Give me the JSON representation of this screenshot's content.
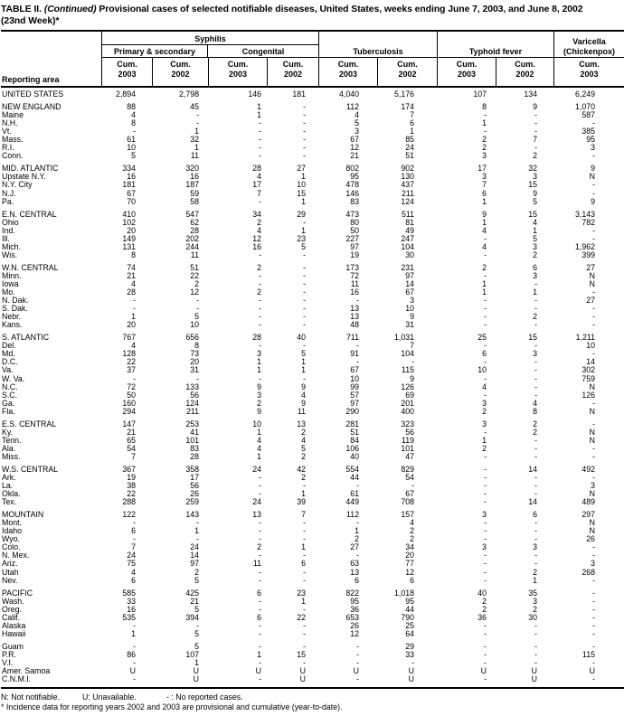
{
  "title": {
    "table_label": "TABLE II.",
    "continued": "(Continued)",
    "line1_rest": "Provisional cases of selected notifiable diseases, United States, weeks ending June 7, 2003, and June 8, 2002",
    "line2": "(23nd Week)*"
  },
  "header": {
    "reporting_area": "Reporting area",
    "syphilis": "Syphilis",
    "primary_secondary": "Primary & secondary",
    "congenital": "Congenital",
    "tuberculosis": "Tuberculosis",
    "typhoid_fever": "Typhoid fever",
    "varicella_line1": "Varicella",
    "varicella_line2": "(Chickenpox)",
    "columns": [
      {
        "label": "Cum.",
        "year": "2003"
      },
      {
        "label": "Cum.",
        "year": "2002"
      },
      {
        "label": "Cum.",
        "year": "2003"
      },
      {
        "label": "Cum.",
        "year": "2002"
      },
      {
        "label": "Cum.",
        "year": "2003"
      },
      {
        "label": "Cum.",
        "year": "2002"
      },
      {
        "label": "Cum.",
        "year": "2003"
      },
      {
        "label": "Cum.",
        "year": "2002"
      },
      {
        "label": "Cum.",
        "year": "2003"
      }
    ]
  },
  "table": {
    "rows": [
      {
        "area": "UNITED STATES",
        "section": true,
        "gap": false,
        "values": [
          "2,894",
          "2,798",
          "146",
          "181",
          "4,040",
          "5,176",
          "107",
          "134",
          "6,249"
        ]
      },
      {
        "area": "NEW ENGLAND",
        "section": true,
        "gap": true,
        "values": [
          "88",
          "45",
          "1",
          "-",
          "112",
          "174",
          "8",
          "9",
          "1,070"
        ]
      },
      {
        "area": "Maine",
        "section": false,
        "gap": false,
        "values": [
          "4",
          "-",
          "1",
          "-",
          "4",
          "7",
          "-",
          "-",
          "587"
        ]
      },
      {
        "area": "N.H.",
        "section": false,
        "gap": false,
        "values": [
          "8",
          "-",
          "-",
          "-",
          "5",
          "6",
          "1",
          "-",
          "-"
        ]
      },
      {
        "area": "Vt.",
        "section": false,
        "gap": false,
        "values": [
          "-",
          "1",
          "-",
          "-",
          "3",
          "1",
          "-",
          "-",
          "385"
        ]
      },
      {
        "area": "Mass.",
        "section": false,
        "gap": false,
        "values": [
          "61",
          "32",
          "-",
          "-",
          "67",
          "85",
          "2",
          "7",
          "95"
        ]
      },
      {
        "area": "R.I.",
        "section": false,
        "gap": false,
        "values": [
          "10",
          "1",
          "-",
          "-",
          "12",
          "24",
          "2",
          "-",
          "3"
        ]
      },
      {
        "area": "Conn.",
        "section": false,
        "gap": false,
        "values": [
          "5",
          "11",
          "-",
          "-",
          "21",
          "51",
          "3",
          "2",
          "-"
        ]
      },
      {
        "area": "MID. ATLANTIC",
        "section": true,
        "gap": true,
        "values": [
          "334",
          "320",
          "28",
          "27",
          "802",
          "902",
          "17",
          "32",
          "9"
        ]
      },
      {
        "area": "Upstate N.Y.",
        "section": false,
        "gap": false,
        "values": [
          "16",
          "16",
          "4",
          "1",
          "95",
          "130",
          "3",
          "3",
          "N"
        ]
      },
      {
        "area": "N.Y. City",
        "section": false,
        "gap": false,
        "values": [
          "181",
          "187",
          "17",
          "10",
          "478",
          "437",
          "7",
          "15",
          "-"
        ]
      },
      {
        "area": "N.J.",
        "section": false,
        "gap": false,
        "values": [
          "67",
          "59",
          "7",
          "15",
          "146",
          "211",
          "6",
          "9",
          "-"
        ]
      },
      {
        "area": "Pa.",
        "section": false,
        "gap": false,
        "values": [
          "70",
          "58",
          "-",
          "1",
          "83",
          "124",
          "1",
          "5",
          "9"
        ]
      },
      {
        "area": "E.N. CENTRAL",
        "section": true,
        "gap": true,
        "values": [
          "410",
          "547",
          "34",
          "29",
          "473",
          "511",
          "9",
          "15",
          "3,143"
        ]
      },
      {
        "area": "Ohio",
        "section": false,
        "gap": false,
        "values": [
          "102",
          "62",
          "2",
          "-",
          "80",
          "81",
          "1",
          "4",
          "782"
        ]
      },
      {
        "area": "Ind.",
        "section": false,
        "gap": false,
        "values": [
          "20",
          "28",
          "4",
          "1",
          "50",
          "49",
          "4",
          "1",
          "-"
        ]
      },
      {
        "area": "Ill.",
        "section": false,
        "gap": false,
        "values": [
          "149",
          "202",
          "12",
          "23",
          "227",
          "247",
          "-",
          "5",
          "-"
        ]
      },
      {
        "area": "Mich.",
        "section": false,
        "gap": false,
        "values": [
          "131",
          "244",
          "16",
          "5",
          "97",
          "104",
          "4",
          "3",
          "1,962"
        ]
      },
      {
        "area": "Wis.",
        "section": false,
        "gap": false,
        "values": [
          "8",
          "11",
          "-",
          "-",
          "19",
          "30",
          "-",
          "2",
          "399"
        ]
      },
      {
        "area": "W.N. CENTRAL",
        "section": true,
        "gap": true,
        "values": [
          "74",
          "51",
          "2",
          "-",
          "173",
          "231",
          "2",
          "6",
          "27"
        ]
      },
      {
        "area": "Minn.",
        "section": false,
        "gap": false,
        "values": [
          "21",
          "22",
          "-",
          "-",
          "72",
          "97",
          "-",
          "3",
          "N"
        ]
      },
      {
        "area": "Iowa",
        "section": false,
        "gap": false,
        "values": [
          "4",
          "2",
          "-",
          "-",
          "11",
          "14",
          "1",
          "-",
          "N"
        ]
      },
      {
        "area": "Mo.",
        "section": false,
        "gap": false,
        "values": [
          "28",
          "12",
          "2",
          "-",
          "16",
          "67",
          "1",
          "1",
          "-"
        ]
      },
      {
        "area": "N. Dak.",
        "section": false,
        "gap": false,
        "values": [
          "-",
          "-",
          "-",
          "-",
          "-",
          "3",
          "-",
          "-",
          "27"
        ]
      },
      {
        "area": "S. Dak.",
        "section": false,
        "gap": false,
        "values": [
          "-",
          "-",
          "-",
          "-",
          "13",
          "10",
          "-",
          "-",
          "-"
        ]
      },
      {
        "area": "Nebr.",
        "section": false,
        "gap": false,
        "values": [
          "1",
          "5",
          "-",
          "-",
          "13",
          "9",
          "-",
          "2",
          "-"
        ]
      },
      {
        "area": "Kans.",
        "section": false,
        "gap": false,
        "values": [
          "20",
          "10",
          "-",
          "-",
          "48",
          "31",
          "-",
          "-",
          "-"
        ]
      },
      {
        "area": "S. ATLANTIC",
        "section": true,
        "gap": true,
        "values": [
          "767",
          "656",
          "28",
          "40",
          "711",
          "1,031",
          "25",
          "15",
          "1,211"
        ]
      },
      {
        "area": "Del.",
        "section": false,
        "gap": false,
        "values": [
          "4",
          "8",
          "-",
          "-",
          "-",
          "7",
          "-",
          "-",
          "10"
        ]
      },
      {
        "area": "Md.",
        "section": false,
        "gap": false,
        "values": [
          "128",
          "73",
          "3",
          "5",
          "91",
          "104",
          "6",
          "3",
          "-"
        ]
      },
      {
        "area": "D.C.",
        "section": false,
        "gap": false,
        "values": [
          "22",
          "20",
          "1",
          "1",
          "-",
          "-",
          "-",
          "-",
          "14"
        ]
      },
      {
        "area": "Va.",
        "section": false,
        "gap": false,
        "values": [
          "37",
          "31",
          "1",
          "1",
          "67",
          "115",
          "10",
          "-",
          "302"
        ]
      },
      {
        "area": "W. Va.",
        "section": false,
        "gap": false,
        "values": [
          "-",
          "-",
          "-",
          "-",
          "10",
          "9",
          "-",
          "-",
          "759"
        ]
      },
      {
        "area": "N.C.",
        "section": false,
        "gap": false,
        "values": [
          "72",
          "133",
          "9",
          "9",
          "99",
          "126",
          "4",
          "-",
          "N"
        ]
      },
      {
        "area": "S.C.",
        "section": false,
        "gap": false,
        "values": [
          "50",
          "56",
          "3",
          "4",
          "57",
          "69",
          "-",
          "-",
          "126"
        ]
      },
      {
        "area": "Ga.",
        "section": false,
        "gap": false,
        "values": [
          "160",
          "124",
          "2",
          "9",
          "97",
          "201",
          "3",
          "4",
          "-"
        ]
      },
      {
        "area": "Fla.",
        "section": false,
        "gap": false,
        "values": [
          "294",
          "211",
          "9",
          "11",
          "290",
          "400",
          "2",
          "8",
          "N"
        ]
      },
      {
        "area": "E.S. CENTRAL",
        "section": true,
        "gap": true,
        "values": [
          "147",
          "253",
          "10",
          "13",
          "281",
          "323",
          "3",
          "2",
          "-"
        ]
      },
      {
        "area": "Ky.",
        "section": false,
        "gap": false,
        "values": [
          "21",
          "41",
          "1",
          "2",
          "51",
          "56",
          "-",
          "2",
          "N"
        ]
      },
      {
        "area": "Tenn.",
        "section": false,
        "gap": false,
        "values": [
          "65",
          "101",
          "4",
          "4",
          "84",
          "119",
          "1",
          "-",
          "N"
        ]
      },
      {
        "area": "Ala.",
        "section": false,
        "gap": false,
        "values": [
          "54",
          "83",
          "4",
          "5",
          "106",
          "101",
          "2",
          "-",
          "-"
        ]
      },
      {
        "area": "Miss.",
        "section": false,
        "gap": false,
        "values": [
          "7",
          "28",
          "1",
          "2",
          "40",
          "47",
          "-",
          "-",
          "-"
        ]
      },
      {
        "area": "W.S. CENTRAL",
        "section": true,
        "gap": true,
        "values": [
          "367",
          "358",
          "24",
          "42",
          "554",
          "829",
          "-",
          "14",
          "492"
        ]
      },
      {
        "area": "Ark.",
        "section": false,
        "gap": false,
        "values": [
          "19",
          "17",
          "-",
          "2",
          "44",
          "54",
          "-",
          "-",
          "-"
        ]
      },
      {
        "area": "La.",
        "section": false,
        "gap": false,
        "values": [
          "38",
          "56",
          "-",
          "-",
          "-",
          "-",
          "-",
          "-",
          "3"
        ]
      },
      {
        "area": "Okla.",
        "section": false,
        "gap": false,
        "values": [
          "22",
          "26",
          "-",
          "1",
          "61",
          "67",
          "-",
          "-",
          "N"
        ]
      },
      {
        "area": "Tex.",
        "section": false,
        "gap": false,
        "values": [
          "288",
          "259",
          "24",
          "39",
          "449",
          "708",
          "-",
          "14",
          "489"
        ]
      },
      {
        "area": "MOUNTAIN",
        "section": true,
        "gap": true,
        "values": [
          "122",
          "143",
          "13",
          "7",
          "112",
          "157",
          "3",
          "6",
          "297"
        ]
      },
      {
        "area": "Mont.",
        "section": false,
        "gap": false,
        "values": [
          "-",
          "-",
          "-",
          "-",
          "-",
          "4",
          "-",
          "-",
          "N"
        ]
      },
      {
        "area": "Idaho",
        "section": false,
        "gap": false,
        "values": [
          "6",
          "1",
          "-",
          "-",
          "1",
          "2",
          "-",
          "-",
          "N"
        ]
      },
      {
        "area": "Wyo.",
        "section": false,
        "gap": false,
        "values": [
          "-",
          "-",
          "-",
          "-",
          "2",
          "2",
          "-",
          "-",
          "26"
        ]
      },
      {
        "area": "Colo.",
        "section": false,
        "gap": false,
        "values": [
          "7",
          "24",
          "2",
          "1",
          "27",
          "34",
          "3",
          "3",
          "-"
        ]
      },
      {
        "area": "N. Mex.",
        "section": false,
        "gap": false,
        "values": [
          "24",
          "14",
          "-",
          "-",
          "-",
          "20",
          "-",
          "-",
          "-"
        ]
      },
      {
        "area": "Ariz.",
        "section": false,
        "gap": false,
        "values": [
          "75",
          "97",
          "11",
          "6",
          "63",
          "77",
          "-",
          "-",
          "3"
        ]
      },
      {
        "area": "Utah",
        "section": false,
        "gap": false,
        "values": [
          "4",
          "2",
          "-",
          "-",
          "13",
          "12",
          "-",
          "2",
          "268"
        ]
      },
      {
        "area": "Nev.",
        "section": false,
        "gap": false,
        "values": [
          "6",
          "5",
          "-",
          "-",
          "6",
          "6",
          "-",
          "1",
          "-"
        ]
      },
      {
        "area": "PACIFIC",
        "section": true,
        "gap": true,
        "values": [
          "585",
          "425",
          "6",
          "23",
          "822",
          "1,018",
          "40",
          "35",
          "-"
        ]
      },
      {
        "area": "Wash.",
        "section": false,
        "gap": false,
        "values": [
          "33",
          "21",
          "-",
          "1",
          "95",
          "95",
          "2",
          "3",
          "-"
        ]
      },
      {
        "area": "Oreg.",
        "section": false,
        "gap": false,
        "values": [
          "16",
          "5",
          "-",
          "-",
          "36",
          "44",
          "2",
          "2",
          "-"
        ]
      },
      {
        "area": "Calif.",
        "section": false,
        "gap": false,
        "values": [
          "535",
          "394",
          "6",
          "22",
          "653",
          "790",
          "36",
          "30",
          "-"
        ]
      },
      {
        "area": "Alaska",
        "section": false,
        "gap": false,
        "values": [
          "-",
          "-",
          "-",
          "-",
          "26",
          "25",
          "-",
          "-",
          "-"
        ]
      },
      {
        "area": "Hawaii",
        "section": false,
        "gap": false,
        "values": [
          "1",
          "5",
          "-",
          "-",
          "12",
          "64",
          "-",
          "-",
          "-"
        ]
      },
      {
        "area": "Guam",
        "section": false,
        "gap": true,
        "values": [
          "-",
          "5",
          "-",
          "-",
          "-",
          "29",
          "-",
          "-",
          "-"
        ]
      },
      {
        "area": "P.R.",
        "section": false,
        "gap": false,
        "values": [
          "86",
          "107",
          "1",
          "15",
          "-",
          "33",
          "-",
          "-",
          "115"
        ]
      },
      {
        "area": "V.I.",
        "section": false,
        "gap": false,
        "values": [
          "-",
          "1",
          "-",
          "-",
          "-",
          "-",
          "-",
          "-",
          "-"
        ]
      },
      {
        "area": "Amer. Samoa",
        "section": false,
        "gap": false,
        "values": [
          "U",
          "U",
          "U",
          "U",
          "U",
          "U",
          "U",
          "U",
          "U"
        ]
      },
      {
        "area": "C.N.M.I.",
        "section": false,
        "gap": false,
        "values": [
          "-",
          "U",
          "-",
          "U",
          "-",
          "U",
          "-",
          "U",
          "-"
        ]
      }
    ]
  },
  "footnotes": {
    "not_notifiable": "N: Not notifiable.",
    "unavailable": "U: Unavailable.",
    "no_cases": "- : No reported cases.",
    "incidence": "* Incidence data for reporting years 2002 and 2003 are provisional and cumulative (year-to-date)."
  }
}
